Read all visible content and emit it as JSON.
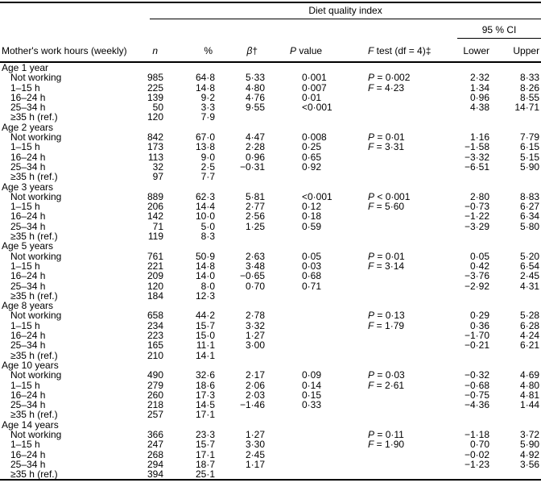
{
  "table": {
    "spanner": "Diet quality index",
    "ci_spanner": "95 % CI",
    "row_label_header": "Mother's work hours (weekly)",
    "columns": [
      {
        "italic": "n",
        "rest": ""
      },
      {
        "italic": "",
        "rest": "%"
      },
      {
        "italic": "β",
        "rest": "†"
      },
      {
        "italic": "P",
        "rest": " value"
      },
      {
        "italic": "F",
        "rest": " test (df = 4)‡"
      },
      {
        "italic": "",
        "rest": "Lower"
      },
      {
        "italic": "",
        "rest": "Upper"
      }
    ],
    "groups": [
      {
        "label": "Age 1 year",
        "rows": [
          {
            "label": "Not working",
            "n": "985",
            "pct": "64·8",
            "beta": "5·33",
            "p": "0·001",
            "ftest": "P = 0·002",
            "lower": "2·32",
            "upper": "8·33"
          },
          {
            "label": "1–15 h",
            "n": "225",
            "pct": "14·8",
            "beta": "4·80",
            "p": "0·007",
            "ftest": "F = 4·23",
            "lower": "1·34",
            "upper": "8·26"
          },
          {
            "label": "16–24 h",
            "n": "139",
            "pct": "9·2",
            "beta": "4·76",
            "p": "0·01",
            "ftest": "",
            "lower": "0·96",
            "upper": "8·55"
          },
          {
            "label": "25–34 h",
            "n": "50",
            "pct": "3·3",
            "beta": "9·55",
            "p": "<0·001",
            "ftest": "",
            "lower": "4·38",
            "upper": "14·71"
          },
          {
            "label": "≥35 h (ref.)",
            "n": "120",
            "pct": "7·9",
            "beta": "",
            "p": "",
            "ftest": "",
            "lower": "",
            "upper": ""
          }
        ]
      },
      {
        "label": "Age 2 years",
        "rows": [
          {
            "label": "Not working",
            "n": "842",
            "pct": "67·0",
            "beta": "4·47",
            "p": "0·008",
            "ftest": "P = 0·01",
            "lower": "1·16",
            "upper": "7·79"
          },
          {
            "label": "1–15 h",
            "n": "173",
            "pct": "13·8",
            "beta": "2·28",
            "p": "0·25",
            "ftest": "F = 3·31",
            "lower": "−1·58",
            "upper": "6·15"
          },
          {
            "label": "16–24 h",
            "n": "113",
            "pct": "9·0",
            "beta": "0·96",
            "p": "0·65",
            "ftest": "",
            "lower": "−3·32",
            "upper": "5·15"
          },
          {
            "label": "25–34 h",
            "n": "32",
            "pct": "2·5",
            "beta": "−0·31",
            "p": "0·92",
            "ftest": "",
            "lower": "−6·51",
            "upper": "5·90"
          },
          {
            "label": "≥35 h (ref.)",
            "n": "97",
            "pct": "7·7",
            "beta": "",
            "p": "",
            "ftest": "",
            "lower": "",
            "upper": ""
          }
        ]
      },
      {
        "label": "Age 3 years",
        "rows": [
          {
            "label": "Not working",
            "n": "889",
            "pct": "62·3",
            "beta": "5·81",
            "p": "<0·001",
            "ftest": "P < 0·001",
            "lower": "2·80",
            "upper": "8·83"
          },
          {
            "label": "1–15 h",
            "n": "206",
            "pct": "14·4",
            "beta": "2·77",
            "p": "0·12",
            "ftest": "F = 5·60",
            "lower": "−0·73",
            "upper": "6·27"
          },
          {
            "label": "16–24 h",
            "n": "142",
            "pct": "10·0",
            "beta": "2·56",
            "p": "0·18",
            "ftest": "",
            "lower": "−1·22",
            "upper": "6·34"
          },
          {
            "label": "25–34 h",
            "n": "71",
            "pct": "5·0",
            "beta": "1·25",
            "p": "0·59",
            "ftest": "",
            "lower": "−3·29",
            "upper": "5·80"
          },
          {
            "label": "≥35 h (ref.)",
            "n": "119",
            "pct": "8·3",
            "beta": "",
            "p": "",
            "ftest": "",
            "lower": "",
            "upper": ""
          }
        ]
      },
      {
        "label": "Age 5 years",
        "rows": [
          {
            "label": "Not working",
            "n": "761",
            "pct": "50·9",
            "beta": "2·63",
            "p": "0·05",
            "ftest": "P = 0·01",
            "lower": "0·05",
            "upper": "5·20"
          },
          {
            "label": "1–15 h",
            "n": "221",
            "pct": "14·8",
            "beta": "3·48",
            "p": "0·03",
            "ftest": "F = 3·14",
            "lower": "0·42",
            "upper": "6·54"
          },
          {
            "label": "16–24 h",
            "n": "209",
            "pct": "14·0",
            "beta": "−0·65",
            "p": "0·68",
            "ftest": "",
            "lower": "−3·76",
            "upper": "2·45"
          },
          {
            "label": "25–34 h",
            "n": "120",
            "pct": "8·0",
            "beta": "0·70",
            "p": "0·71",
            "ftest": "",
            "lower": "−2·92",
            "upper": "4·31"
          },
          {
            "label": "≥35 h (ref.)",
            "n": "184",
            "pct": "12·3",
            "beta": "",
            "p": "",
            "ftest": "",
            "lower": "",
            "upper": ""
          }
        ]
      },
      {
        "label": "Age 8 years",
        "rows": [
          {
            "label": "Not working",
            "n": "658",
            "pct": "44·2",
            "beta": "2·78",
            "p": "",
            "ftest": "P = 0·13",
            "lower": "0·29",
            "upper": "5·28"
          },
          {
            "label": "1–15 h",
            "n": "234",
            "pct": "15·7",
            "beta": "3·32",
            "p": "",
            "ftest": "F = 1·79",
            "lower": "0·36",
            "upper": "6·28"
          },
          {
            "label": "16–24 h",
            "n": "223",
            "pct": "15·0",
            "beta": "1·27",
            "p": "",
            "ftest": "",
            "lower": "−1·70",
            "upper": "4·24"
          },
          {
            "label": "25–34 h",
            "n": "165",
            "pct": "11·1",
            "beta": "3·00",
            "p": "",
            "ftest": "",
            "lower": "−0·21",
            "upper": "6·21"
          },
          {
            "label": "≥35 h (ref.)",
            "n": "210",
            "pct": "14·1",
            "beta": "",
            "p": "",
            "ftest": "",
            "lower": "",
            "upper": ""
          }
        ]
      },
      {
        "label": "Age 10 years",
        "rows": [
          {
            "label": "Not working",
            "n": "490",
            "pct": "32·6",
            "beta": "2·17",
            "p": "0·09",
            "ftest": "P = 0·03",
            "lower": "−0·32",
            "upper": "4·69"
          },
          {
            "label": "1–15 h",
            "n": "279",
            "pct": "18·6",
            "beta": "2·06",
            "p": "0·14",
            "ftest": "F = 2·61",
            "lower": "−0·68",
            "upper": "4·80"
          },
          {
            "label": "16–24 h",
            "n": "260",
            "pct": "17·3",
            "beta": "2·03",
            "p": "0·15",
            "ftest": "",
            "lower": "−0·75",
            "upper": "4·81"
          },
          {
            "label": "25–34 h",
            "n": "218",
            "pct": "14·5",
            "beta": "−1·46",
            "p": "0·33",
            "ftest": "",
            "lower": "−4·36",
            "upper": "1·44"
          },
          {
            "label": "≥35 h (ref.)",
            "n": "257",
            "pct": "17·1",
            "beta": "",
            "p": "",
            "ftest": "",
            "lower": "",
            "upper": ""
          }
        ]
      },
      {
        "label": "Age 14 years",
        "rows": [
          {
            "label": "Not working",
            "n": "366",
            "pct": "23·3",
            "beta": "1·27",
            "p": "",
            "ftest": "P = 0·11",
            "lower": "−1·18",
            "upper": "3·72"
          },
          {
            "label": "1–15 h",
            "n": "247",
            "pct": "15·7",
            "beta": "3·30",
            "p": "",
            "ftest": "F = 1·90",
            "lower": "0·70",
            "upper": "5·90"
          },
          {
            "label": "16–24 h",
            "n": "268",
            "pct": "17·1",
            "beta": "2·45",
            "p": "",
            "ftest": "",
            "lower": "−0·02",
            "upper": "4·92"
          },
          {
            "label": "25–34 h",
            "n": "294",
            "pct": "18·7",
            "beta": "1·17",
            "p": "",
            "ftest": "",
            "lower": "−1·23",
            "upper": "3·56"
          },
          {
            "label": "≥35 h (ref.)",
            "n": "394",
            "pct": "25·1",
            "beta": "",
            "p": "",
            "ftest": "",
            "lower": "",
            "upper": ""
          }
        ]
      }
    ]
  }
}
